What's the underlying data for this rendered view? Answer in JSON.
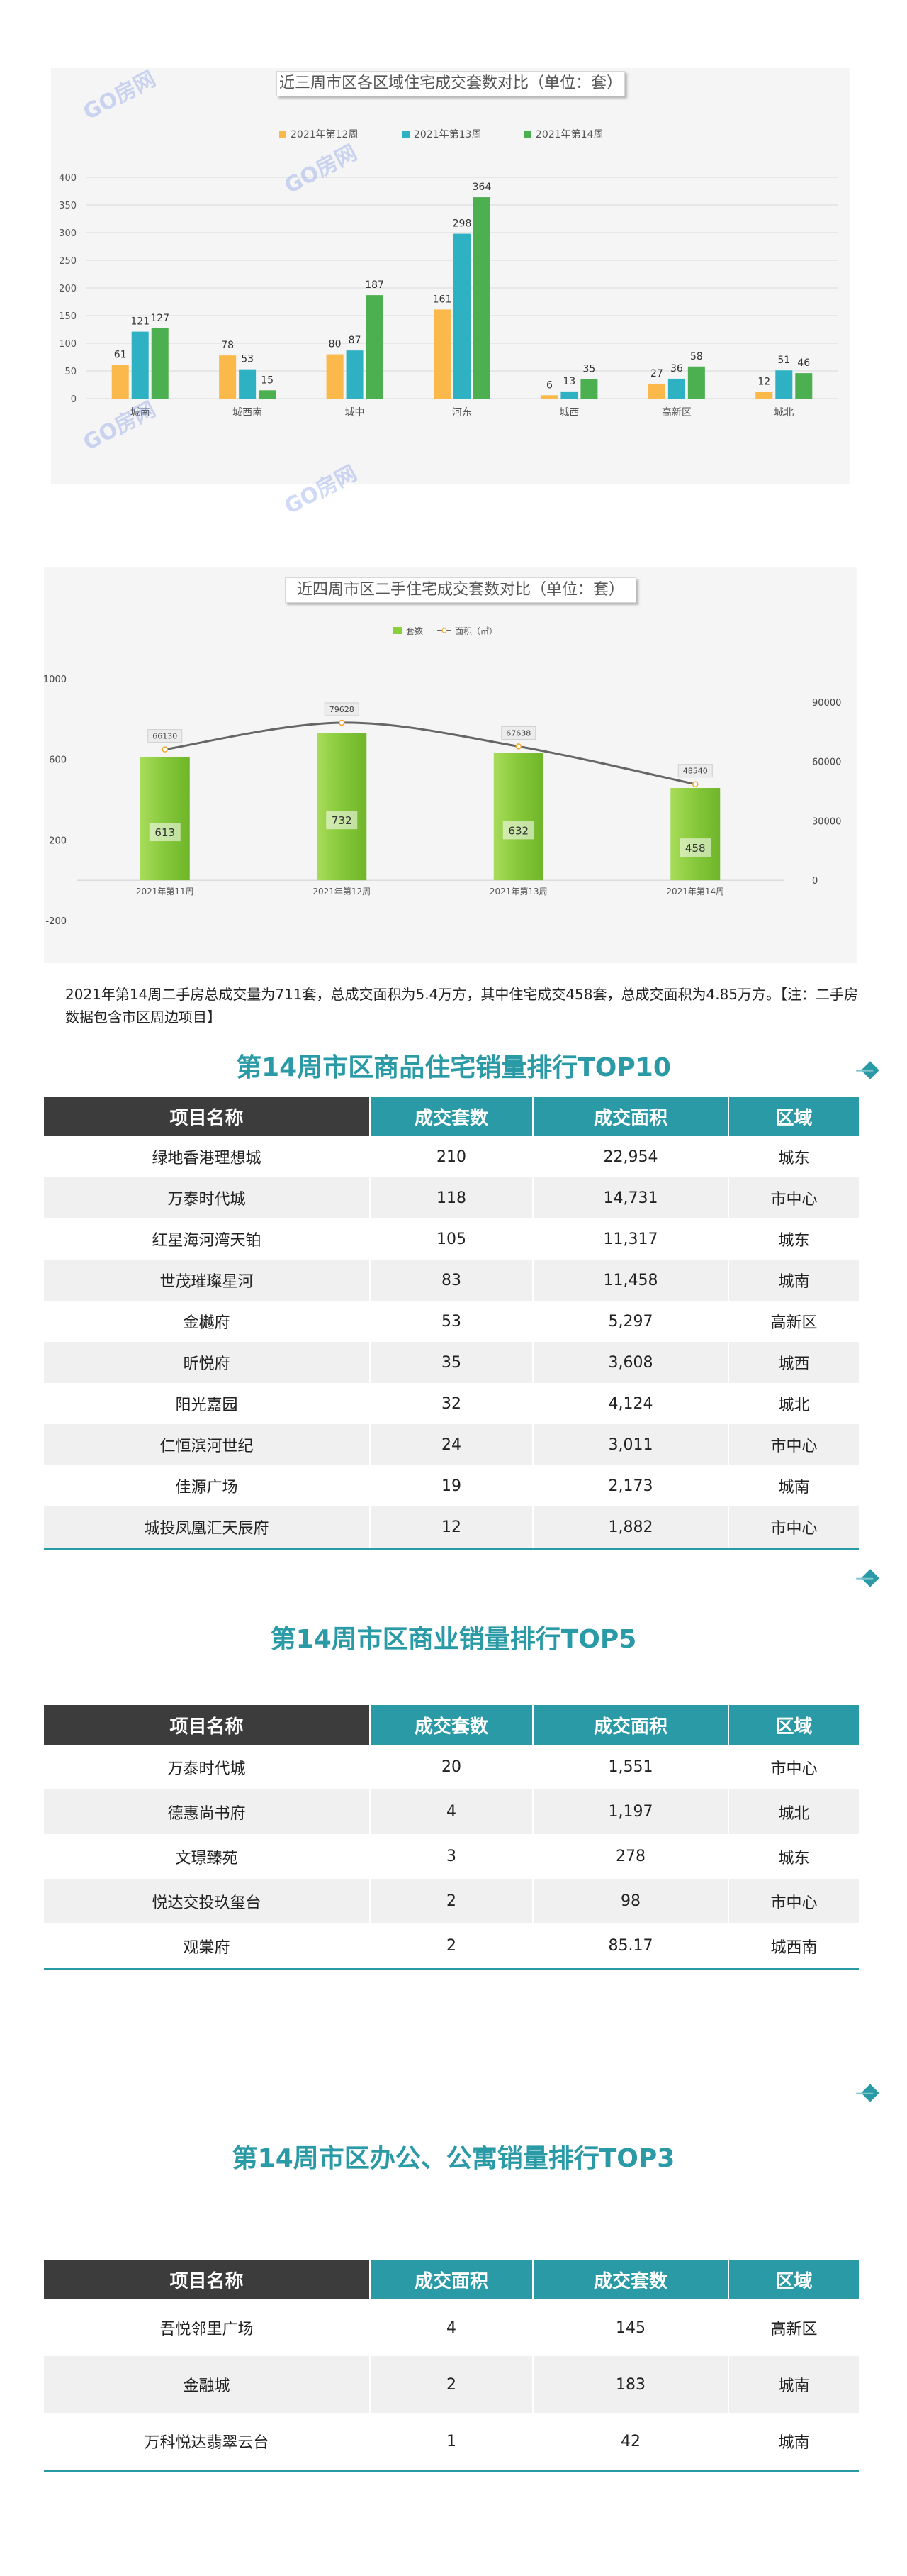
{
  "watermark": "GO房网",
  "chart_data": [
    {
      "type": "bar",
      "title": "近三周市区各区域住宅成交套数对比（单位：套）",
      "categories": [
        "城南",
        "城西南",
        "城中",
        "河东",
        "城西",
        "高新区",
        "城北"
      ],
      "series": [
        {
          "name": "2021年第12周",
          "values": [
            61,
            78,
            80,
            161,
            6,
            27,
            12
          ],
          "color": "#fbb84b"
        },
        {
          "name": "2021年第13周",
          "values": [
            121,
            53,
            87,
            298,
            13,
            36,
            51
          ],
          "color": "#2fb1c4"
        },
        {
          "name": "2021年第14周",
          "values": [
            127,
            15,
            187,
            364,
            35,
            58,
            46
          ],
          "color": "#4caf50"
        }
      ],
      "ylim": [
        0,
        400
      ],
      "yticks": [
        "400",
        "350",
        "300",
        "250",
        "200",
        "150",
        "100",
        "50",
        "0"
      ],
      "legend": "top",
      "grid": true
    },
    {
      "type": "bar",
      "title": "近四周市区二手住宅成交套数对比（单位：套）",
      "categories": [
        "2021年第11周",
        "2021年第12周",
        "2021年第13周",
        "2021年第14周"
      ],
      "series": [
        {
          "name": "套数",
          "values": [
            613,
            732,
            632,
            458
          ],
          "color": "#8ccf3c",
          "axis": "left"
        },
        {
          "name": "面积（㎡）",
          "values": [
            66130,
            79628,
            67638,
            48540
          ],
          "color": "#666666",
          "axis": "right",
          "type": "line"
        }
      ],
      "ylim": [
        -200,
        1000
      ],
      "yticks": [
        "1000",
        "600",
        "200",
        "-200"
      ],
      "y2lim": [
        0,
        90000
      ],
      "y2ticks": [
        "90000",
        "60000",
        "30000",
        "0"
      ],
      "legend": "top",
      "grid": false
    }
  ],
  "note": "2021年第14周二手房总成交量为711套，总成交面积为5.4万方，其中住宅成交458套，总成交面积为4.85万方。【注：二手房数据包含市区周边项目】",
  "top10": {
    "title": "第14周市区商品住宅销量排行TOP10",
    "headers": [
      "项目名称",
      "成交套数",
      "成交面积",
      "区域"
    ],
    "rows": [
      [
        "绿地香港理想城",
        "210",
        "22,954",
        "城东"
      ],
      [
        "万泰时代城",
        "118",
        "14,731",
        "市中心"
      ],
      [
        "红星海河湾天铂",
        "105",
        "11,317",
        "城东"
      ],
      [
        "世茂璀璨星河",
        "83",
        "11,458",
        "城南"
      ],
      [
        "金樾府",
        "53",
        "5,297",
        "高新区"
      ],
      [
        "昕悦府",
        "35",
        "3,608",
        "城西"
      ],
      [
        "阳光嘉园",
        "32",
        "4,124",
        "城北"
      ],
      [
        "仁恒滨河世纪",
        "24",
        "3,011",
        "市中心"
      ],
      [
        "佳源广场",
        "19",
        "2,173",
        "城南"
      ],
      [
        "城投凤凰汇天辰府",
        "12",
        "1,882",
        "市中心"
      ]
    ]
  },
  "top5": {
    "title": "第14周市区商业销量排行TOP5",
    "headers": [
      "项目名称",
      "成交套数",
      "成交面积",
      "区域"
    ],
    "rows": [
      [
        "万泰时代城",
        "20",
        "1,551",
        "市中心"
      ],
      [
        "德惠尚书府",
        "4",
        "1,197",
        "城北"
      ],
      [
        "文璟臻苑",
        "3",
        "278",
        "城东"
      ],
      [
        "悦达交投玖玺台",
        "2",
        "98",
        "市中心"
      ],
      [
        "观棠府",
        "2",
        "85.17",
        "城西南"
      ]
    ]
  },
  "top3": {
    "title": "第14周市区办公、公寓销量排行TOP3",
    "headers": [
      "项目名称",
      "成交面积",
      "成交套数",
      "区域"
    ],
    "rows": [
      [
        "吾悦邻里广场",
        "4",
        "145",
        "高新区"
      ],
      [
        "金融城",
        "2",
        "183",
        "城南"
      ],
      [
        "万科悦达翡翠云台",
        "1",
        "42",
        "城南"
      ]
    ]
  }
}
